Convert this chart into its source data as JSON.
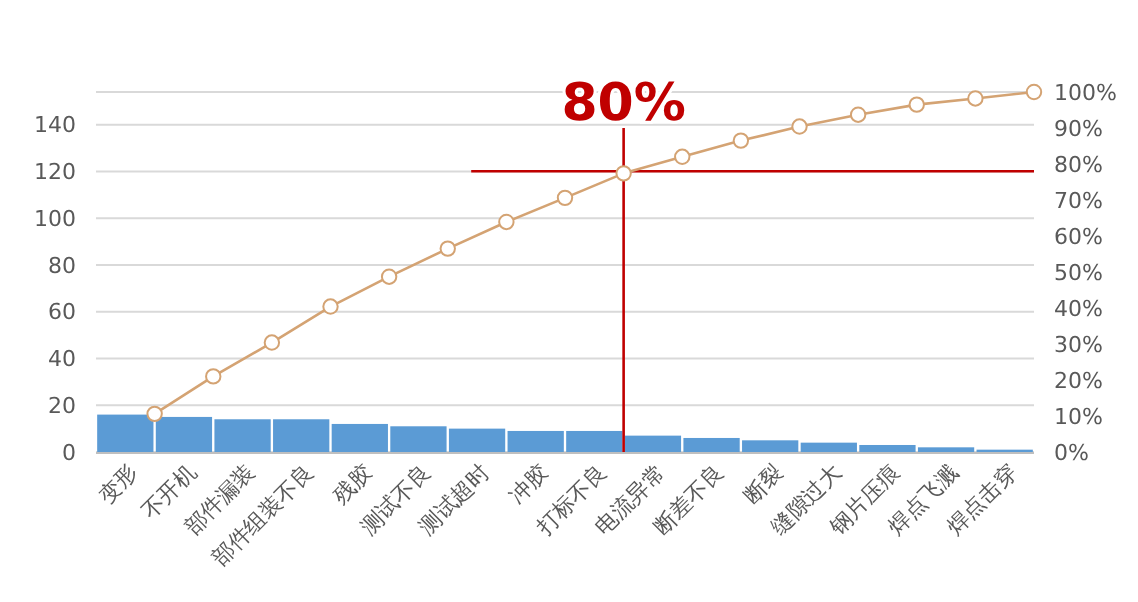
{
  "chart_data": {
    "type": "bar",
    "categories": [
      "变形",
      "不开机",
      "部件漏装",
      "部件组装不良",
      "残胶",
      "测试不良",
      "测试超时",
      "冲胶",
      "打标不良",
      "电流异常",
      "断差不良",
      "断裂",
      "缝隙过大",
      "钢片压痕",
      "焊点飞溅",
      "焊点击穿"
    ],
    "series": [
      {
        "color": "#5b9bd5",
        "values": [
          16,
          15,
          14,
          14,
          12,
          11,
          10,
          9,
          9,
          7,
          6,
          5,
          4,
          3,
          2,
          1
        ]
      },
      {
        "type": "line",
        "axis": "y2",
        "color": "#d4a373",
        "values": [
          10.6,
          21,
          30.4,
          40.4,
          48.7,
          56.5,
          63.9,
          70.6,
          77.4,
          82,
          86.5,
          90.4,
          93.7,
          96.5,
          98.2,
          100
        ]
      }
    ],
    "ylim": [
      0,
      154
    ],
    "yticks": [
      0,
      20,
      40,
      60,
      80,
      100,
      120,
      140
    ],
    "y2lim": [
      0,
      100
    ],
    "y2ticks": [
      {
        "value": 0,
        "label": "0%"
      },
      {
        "value": 10,
        "label": "10%"
      },
      {
        "value": 20,
        "label": "20%"
      },
      {
        "value": 30,
        "label": "30%"
      },
      {
        "value": 40,
        "label": "40%"
      },
      {
        "value": 50,
        "label": "50%"
      },
      {
        "value": 60,
        "label": "60%"
      },
      {
        "value": 70,
        "label": "70%"
      },
      {
        "value": 80,
        "label": "80%"
      },
      {
        "value": 90,
        "label": "90%"
      },
      {
        "value": 100,
        "label": "100%"
      }
    ],
    "grid": "y",
    "marker": "circle",
    "line_style": "solid",
    "ref_lines": [
      {
        "axis": "y2",
        "value": 78,
        "color": "#c00000"
      },
      {
        "axis": "x",
        "value": "打标不良",
        "color": "#c00000"
      }
    ],
    "annotations": [
      "80%"
    ]
  }
}
